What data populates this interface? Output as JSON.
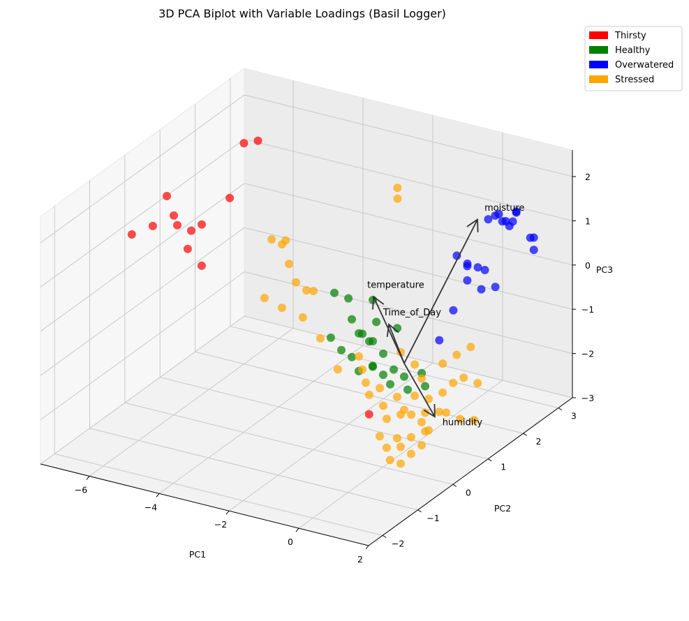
{
  "chart_data": {
    "type": "scatter",
    "projection": "3d",
    "title": "3D PCA Biplot with Variable Loadings (Basil Logger)",
    "xlabel": "PC1",
    "ylabel": "PC2",
    "zlabel": "PC3",
    "xlim": [
      -7.4,
      2.0
    ],
    "ylim": [
      -2.4,
      3.4
    ],
    "zlim": [
      -3.0,
      2.6
    ],
    "xticks": [
      "−6",
      "−4",
      "−2",
      "0",
      "2"
    ],
    "yticks": [
      "−2",
      "−1",
      "0",
      "1",
      "2",
      "3"
    ],
    "zticks": [
      "−3",
      "−2",
      "−1",
      "0",
      "1",
      "2"
    ],
    "grid": true,
    "legend_position": "top-right",
    "series": [
      {
        "name": "Thirsty",
        "color": "#ff0000",
        "points": [
          [
            -7.0,
            -0.2,
            1.0
          ],
          [
            -6.8,
            0.2,
            1.0
          ],
          [
            -6.6,
            0.4,
            1.6
          ],
          [
            -6.4,
            0.4,
            1.2
          ],
          [
            -6.3,
            0.4,
            1.0
          ],
          [
            -6.1,
            0.6,
            0.8
          ],
          [
            -5.9,
            0.3,
            0.6
          ],
          [
            -5.8,
            0.6,
            1.0
          ],
          [
            -5.5,
            0.3,
            0.3
          ],
          [
            -5.2,
            0.8,
            1.6
          ],
          [
            -5.6,
            1.6,
            2.3
          ],
          [
            -5.5,
            1.9,
            2.2
          ],
          [
            0.1,
            -0.5,
            -1.5
          ]
        ]
      },
      {
        "name": "Healthy",
        "color": "#008000",
        "points": [
          [
            -2.0,
            0.6,
            0.2
          ],
          [
            -1.8,
            0.8,
            0.0
          ],
          [
            -1.5,
            0.6,
            -0.3
          ],
          [
            -1.2,
            0.5,
            -0.5
          ],
          [
            -1.0,
            0.6,
            -0.7
          ],
          [
            -0.8,
            0.5,
            -0.6
          ],
          [
            -0.6,
            0.6,
            -0.9
          ],
          [
            -0.9,
            0.7,
            -0.3
          ],
          [
            -1.5,
            0.9,
            -0.8
          ],
          [
            -1.3,
            0.4,
            -1.0
          ],
          [
            -1.0,
            0.3,
            -1.2
          ],
          [
            -0.7,
            0.4,
            -1.1
          ],
          [
            -0.5,
            0.5,
            -1.3
          ],
          [
            -0.3,
            0.6,
            -1.2
          ],
          [
            -0.2,
            0.4,
            -1.4
          ],
          [
            0.0,
            0.6,
            -1.3
          ],
          [
            0.2,
            0.5,
            -1.5
          ],
          [
            0.4,
            0.7,
            -1.2
          ],
          [
            -1.8,
            0.3,
            -0.6
          ],
          [
            -1.6,
            0.4,
            -0.9
          ],
          [
            -0.4,
            0.8,
            -0.4
          ],
          [
            0.6,
            0.6,
            -1.4
          ],
          [
            -1.1,
            0.8,
            0.1
          ],
          [
            -0.6,
            0.3,
            -1.0
          ]
        ]
      },
      {
        "name": "Overwatered",
        "color": "#0000ff",
        "points": [
          [
            1.2,
            1.8,
            1.8
          ],
          [
            1.4,
            1.9,
            1.9
          ],
          [
            1.5,
            2.0,
            1.7
          ],
          [
            1.3,
            2.1,
            1.6
          ],
          [
            1.6,
            2.2,
            1.8
          ],
          [
            1.4,
            2.3,
            1.5
          ],
          [
            1.7,
            2.1,
            1.9
          ],
          [
            1.5,
            1.7,
            2.0
          ],
          [
            1.2,
            2.4,
            1.3
          ],
          [
            1.8,
            2.5,
            1.1
          ],
          [
            1.6,
            2.6,
            1.0
          ],
          [
            1.9,
            2.4,
            0.9
          ],
          [
            0.3,
            1.8,
            0.8
          ],
          [
            0.5,
            1.9,
            0.6
          ],
          [
            0.7,
            2.0,
            0.5
          ],
          [
            0.6,
            1.8,
            0.3
          ],
          [
            0.8,
            2.1,
            0.4
          ],
          [
            0.9,
            1.9,
            0.1
          ],
          [
            0.4,
            1.6,
            -0.3
          ],
          [
            1.0,
            2.2,
            0.0
          ],
          [
            0.2,
            1.4,
            -0.9
          ],
          [
            0.7,
            1.7,
            0.7
          ]
        ]
      },
      {
        "name": "Stressed",
        "color": "#ffa500",
        "points": [
          [
            -4.0,
            0.8,
            0.9
          ],
          [
            -3.8,
            1.0,
            0.8
          ],
          [
            -3.5,
            0.6,
            1.0
          ],
          [
            -3.3,
            0.6,
            0.6
          ],
          [
            -3.0,
            0.5,
            0.3
          ],
          [
            -2.8,
            0.6,
            0.1
          ],
          [
            -2.5,
            0.5,
            0.2
          ],
          [
            -3.2,
            0.3,
            -0.2
          ],
          [
            -2.6,
            0.3,
            -0.3
          ],
          [
            -2.0,
            0.2,
            -0.6
          ],
          [
            -3.6,
            0.2,
            0.0
          ],
          [
            -1.4,
            1.8,
            2.0
          ],
          [
            -1.6,
            2.0,
            1.6
          ],
          [
            0.4,
            0.5,
            -1.6
          ],
          [
            0.2,
            0.4,
            -1.9
          ],
          [
            0.0,
            0.5,
            -2.1
          ],
          [
            -0.2,
            0.6,
            -1.8
          ],
          [
            0.6,
            0.6,
            -2.0
          ],
          [
            0.8,
            0.5,
            -2.3
          ],
          [
            0.5,
            0.3,
            -2.4
          ],
          [
            0.3,
            0.2,
            -2.6
          ],
          [
            0.1,
            0.3,
            -2.5
          ],
          [
            -0.1,
            0.2,
            -2.7
          ],
          [
            0.4,
            0.1,
            -2.9
          ],
          [
            0.2,
            0.0,
            -2.8
          ],
          [
            0.6,
            0.2,
            -2.7
          ],
          [
            -0.3,
            0.4,
            -2.2
          ],
          [
            -0.5,
            0.5,
            -2.0
          ],
          [
            -0.7,
            0.6,
            -1.7
          ],
          [
            -0.9,
            0.4,
            -1.5
          ],
          [
            -1.1,
            0.5,
            -1.3
          ],
          [
            -1.3,
            0.6,
            -1.1
          ],
          [
            -1.5,
            0.2,
            -1.2
          ],
          [
            0.9,
            0.8,
            -1.6
          ],
          [
            1.1,
            0.9,
            -1.4
          ],
          [
            1.3,
            1.0,
            -1.3
          ],
          [
            1.5,
            1.2,
            -1.5
          ],
          [
            1.0,
            1.1,
            -0.9
          ],
          [
            1.2,
            1.3,
            -0.8
          ],
          [
            0.7,
            1.0,
            -1.1
          ],
          [
            0.0,
            0.9,
            -1.2
          ],
          [
            -0.4,
            0.9,
            -1.0
          ],
          [
            0.3,
            0.8,
            -1.4
          ],
          [
            0.8,
            0.3,
            -2.0
          ],
          [
            1.0,
            0.6,
            -1.9
          ],
          [
            1.4,
            0.8,
            -2.1
          ],
          [
            1.6,
            1.0,
            -2.2
          ],
          [
            0.5,
            0.7,
            -2.5
          ],
          [
            -0.2,
            0.1,
            -2.4
          ],
          [
            0.1,
            0.7,
            -2.2
          ],
          [
            0.4,
            0.9,
            -1.9
          ],
          [
            -0.6,
            0.2,
            -1.6
          ],
          [
            0.7,
            0.4,
            -2.6
          ],
          [
            1.3,
            0.5,
            -1.8
          ]
        ]
      }
    ],
    "loadings": [
      {
        "name": "moisture",
        "vector": [
          0.35,
          0.6,
          1.2
        ]
      },
      {
        "name": "temperature",
        "vector": [
          -0.6,
          0.2,
          0.45
        ]
      },
      {
        "name": "Time_of_Day",
        "vector": [
          -0.15,
          -0.05,
          0.4
        ]
      },
      {
        "name": "humidity",
        "vector": [
          0.75,
          -0.35,
          -0.2
        ]
      }
    ],
    "loading_origin": [
      0.0,
      0.6,
      -1.0
    ]
  }
}
